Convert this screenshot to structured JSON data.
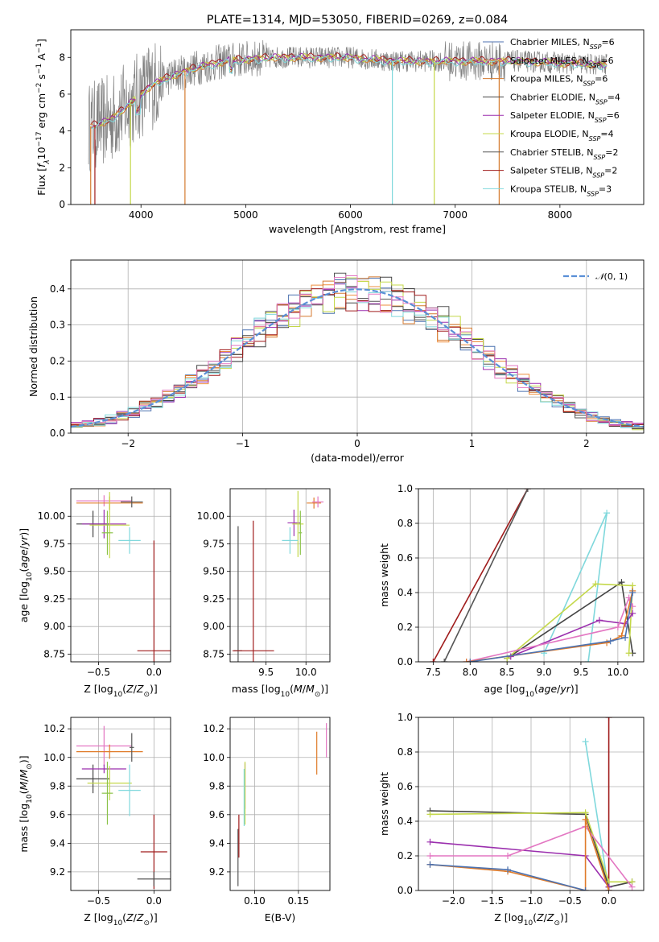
{
  "title": "PLATE=1314, MJD=53050, FIBERID=0269, z=0.084",
  "colors": {
    "chabrier_miles": "#4c72b0",
    "salpeter_miles": "#ee8e3d",
    "kroupa_miles": "#d57a2f",
    "chabrier_elodie": "#444444",
    "salpeter_elodie": "#9b2fae",
    "kroupa_elodie": "#c4d84a",
    "chabrier_stelib": "#555555",
    "salpeter_stelib": "#a01c1c",
    "kroupa_stelib": "#7fd8dc",
    "pink": "#e377c2",
    "orange": "#e07b29",
    "olive": "#8bc34a",
    "gray": "#808080",
    "normal_curve": "#5a8fd6"
  },
  "chart_data": [
    {
      "id": "spectrum",
      "type": "line",
      "title": "PLATE=1314, MJD=53050, FIBERID=0269, z=0.084",
      "xlabel": "wavelength [Angstrom, rest frame]",
      "ylabel": "Flux [f_λ10^-17 erg cm^-2 s^-1 A^-1]",
      "xlim": [
        3330,
        8800
      ],
      "ylim": [
        0,
        9.5
      ],
      "xticks": [
        4000,
        5000,
        6000,
        7000,
        8000
      ],
      "yticks": [
        0,
        2,
        4,
        6,
        8
      ],
      "grid": false,
      "legend_position": "top-right",
      "continuum": {
        "x": [
          3500,
          3700,
          3900,
          4100,
          4300,
          4500,
          4800,
          5000,
          5300,
          5600,
          6000,
          6400,
          6800,
          7200,
          7600,
          8000,
          8400
        ],
        "y": [
          4.2,
          4.6,
          5.5,
          6.5,
          7.0,
          7.4,
          7.8,
          7.9,
          8.0,
          8.0,
          8.0,
          7.8,
          7.8,
          7.8,
          7.8,
          7.7,
          7.6
        ]
      },
      "series": [
        {
          "name": "Chabrier MILES, N_SSP=6",
          "n_ssp": 6,
          "color": "#4c72b0"
        },
        {
          "name": "Salpeter MILES, N_SSP=6",
          "n_ssp": 6,
          "color": "#ee8e3d"
        },
        {
          "name": "Kroupa MILES, N_SSP=6",
          "n_ssp": 6,
          "color": "#d57a2f"
        },
        {
          "name": "Chabrier ELODIE, N_SSP=4",
          "n_ssp": 4,
          "color": "#444444"
        },
        {
          "name": "Salpeter ELODIE, N_SSP=6",
          "n_ssp": 6,
          "color": "#9b2fae"
        },
        {
          "name": "Kroupa ELODIE, N_SSP=4",
          "n_ssp": 4,
          "color": "#c4d84a"
        },
        {
          "name": "Chabrier STELIB, N_SSP=2",
          "n_ssp": 2,
          "color": "#555555"
        },
        {
          "name": "Salpeter STELIB, N_SSP=2",
          "n_ssp": 2,
          "color": "#a01c1c"
        },
        {
          "name": "Kroupa STELIB, N_SSP=3",
          "n_ssp": 3,
          "color": "#7fd8dc"
        }
      ],
      "legend_labels": [
        {
          "pre": "Chabrier MILES, N",
          "sub": "SSP",
          "post": "=6"
        },
        {
          "pre": "Salpeter MILES, N",
          "sub": "SSP",
          "post": "=6"
        },
        {
          "pre": "Kroupa MILES, N",
          "sub": "SSP",
          "post": "=6"
        },
        {
          "pre": "Chabrier ELODIE, N",
          "sub": "SSP",
          "post": "=4"
        },
        {
          "pre": "Salpeter ELODIE, N",
          "sub": "SSP",
          "post": "=6"
        },
        {
          "pre": "Kroupa ELODIE, N",
          "sub": "SSP",
          "post": "=4"
        },
        {
          "pre": "Chabrier STELIB, N",
          "sub": "SSP",
          "post": "=2"
        },
        {
          "pre": "Salpeter STELIB, N",
          "sub": "SSP",
          "post": "=2"
        },
        {
          "pre": "Kroupa STELIB, N",
          "sub": "SSP",
          "post": "=3"
        }
      ],
      "dropouts": [
        {
          "x": 3520,
          "color": "#d57a2f"
        },
        {
          "x": 3560,
          "color": "#a01c1c"
        },
        {
          "x": 3900,
          "color": "#c4d84a"
        },
        {
          "x": 4420,
          "color": "#d57a2f"
        },
        {
          "x": 6400,
          "color": "#7fd8dc"
        },
        {
          "x": 6800,
          "color": "#c4d84a"
        },
        {
          "x": 7420,
          "color": "#d57a2f"
        }
      ]
    },
    {
      "id": "residuals",
      "type": "histogram",
      "xlabel": "(data-model)/error",
      "ylabel": "Normed distribution",
      "xlim": [
        -2.5,
        2.5
      ],
      "ylim": [
        0,
        0.48
      ],
      "xticks": [
        -2,
        -1,
        0,
        1,
        2
      ],
      "yticks": [
        0.0,
        0.1,
        0.2,
        0.3,
        0.4
      ],
      "grid": true,
      "legend_position": "top-right",
      "reference_curve": {
        "name": "N(0,1)",
        "mean": 0,
        "sigma": 1,
        "color": "#5a8fd6"
      },
      "bin_width": 0.1,
      "series_colors": [
        "#4c72b0",
        "#ee8e3d",
        "#d57a2f",
        "#444444",
        "#9b2fae",
        "#c4d84a",
        "#555555",
        "#a01c1c",
        "#7fd8dc",
        "#e377c2"
      ]
    },
    {
      "id": "age_vs_Z",
      "type": "scatter",
      "xlabel": "Z [log10(Z/Z⊙)]",
      "ylabel": "age [log10(age/yr)]",
      "xlim": [
        -0.75,
        0.15
      ],
      "ylim": [
        8.68,
        10.25
      ],
      "xticks": [
        -0.5,
        0.0
      ],
      "yticks": [
        8.75,
        9.0,
        9.25,
        9.5,
        9.75,
        10.0
      ],
      "grid": true,
      "points": [
        {
          "x": -0.45,
          "y": 10.14,
          "xerr": 0.25,
          "yerr": 0.05,
          "color": "#e377c2"
        },
        {
          "x": -0.4,
          "y": 10.12,
          "xerr": 0.3,
          "yerr": 0.06,
          "color": "#e07b29"
        },
        {
          "x": -0.2,
          "y": 10.13,
          "xerr": 0.1,
          "yerr": 0.05,
          "color": "#555555"
        },
        {
          "x": -0.55,
          "y": 9.93,
          "xerr": 0.15,
          "yerr": 0.12,
          "color": "#444444"
        },
        {
          "x": -0.45,
          "y": 9.93,
          "xerr": 0.2,
          "yerr": 0.13,
          "color": "#9b2fae"
        },
        {
          "x": -0.4,
          "y": 9.92,
          "xerr": 0.18,
          "yerr": 0.3,
          "color": "#c4d84a"
        },
        {
          "x": -0.42,
          "y": 9.85,
          "xerr": 0.05,
          "yerr": 0.2,
          "color": "#8bc34a"
        },
        {
          "x": -0.22,
          "y": 9.78,
          "xerr": 0.1,
          "yerr": 0.12,
          "color": "#7fd8dc"
        },
        {
          "x": 0.0,
          "y": 8.78,
          "xerr": 0.15,
          "yerr": 1.0,
          "color": "#a01c1c"
        }
      ]
    },
    {
      "id": "age_vs_mass",
      "type": "scatter",
      "xlabel": "mass [log10(M/M⊙)]",
      "ylabel": "",
      "xlim": [
        9.05,
        10.3
      ],
      "ylim": [
        8.68,
        10.25
      ],
      "xticks": [
        9.5,
        10.0
      ],
      "yticks": [
        8.75,
        9.0,
        9.25,
        9.5,
        9.75,
        10.0
      ],
      "grid": true,
      "points": [
        {
          "x": 9.15,
          "y": 8.78,
          "xerr": 0.05,
          "yerr": 1.13,
          "color": "#555555"
        },
        {
          "x": 9.34,
          "y": 8.78,
          "xerr": 0.26,
          "yerr": 1.18,
          "color": "#a01c1c"
        },
        {
          "x": 9.85,
          "y": 9.94,
          "xerr": 0.08,
          "yerr": 0.12,
          "color": "#9b2fae"
        },
        {
          "x": 9.9,
          "y": 9.93,
          "xerr": 0.07,
          "yerr": 0.3,
          "color": "#c4d84a"
        },
        {
          "x": 9.93,
          "y": 9.85,
          "xerr": 0.02,
          "yerr": 0.2,
          "color": "#8bc34a"
        },
        {
          "x": 9.8,
          "y": 9.78,
          "xerr": 0.1,
          "yerr": 0.12,
          "color": "#7fd8dc"
        },
        {
          "x": 10.1,
          "y": 10.12,
          "xerr": 0.09,
          "yerr": 0.05,
          "color": "#e07b29"
        },
        {
          "x": 10.15,
          "y": 10.13,
          "xerr": 0.07,
          "yerr": 0.05,
          "color": "#e377c2"
        }
      ]
    },
    {
      "id": "weight_vs_age",
      "type": "line",
      "xlabel": "age [log10(age/yr)]",
      "ylabel": "mass weight",
      "xlim": [
        7.3,
        10.35
      ],
      "ylim": [
        0,
        1.0
      ],
      "xticks": [
        7.5,
        8.0,
        8.5,
        9.0,
        9.5,
        10.0
      ],
      "yticks": [
        0.0,
        0.2,
        0.4,
        0.6,
        0.8,
        1.0
      ],
      "grid": true,
      "series": [
        {
          "color": "#a01c1c",
          "x": [
            7.5,
            8.78
          ],
          "y": [
            0.0,
            1.0
          ]
        },
        {
          "color": "#555555",
          "x": [
            7.65,
            8.78
          ],
          "y": [
            0.0,
            1.0
          ]
        },
        {
          "color": "#7fd8dc",
          "x": [
            9.0,
            9.85,
            9.6
          ],
          "y": [
            0.05,
            0.86,
            0.0
          ]
        },
        {
          "color": "#444444",
          "x": [
            8.5,
            10.05,
            10.2
          ],
          "y": [
            0.02,
            0.46,
            0.05
          ]
        },
        {
          "color": "#c4d84a",
          "x": [
            8.5,
            9.7,
            10.2,
            10.15
          ],
          "y": [
            0.02,
            0.45,
            0.44,
            0.05
          ]
        },
        {
          "color": "#9b2fae",
          "x": [
            8.55,
            9.75,
            10.1,
            10.2
          ],
          "y": [
            0.03,
            0.24,
            0.22,
            0.28
          ]
        },
        {
          "color": "#e377c2",
          "x": [
            7.95,
            10.0,
            10.15,
            10.2
          ],
          "y": [
            0.0,
            0.2,
            0.37,
            0.32
          ]
        },
        {
          "color": "#e07b29",
          "x": [
            7.95,
            9.85,
            10.05,
            10.2
          ],
          "y": [
            0.0,
            0.11,
            0.15,
            0.41
          ]
        },
        {
          "color": "#4c72b0",
          "x": [
            8.0,
            9.9,
            10.1,
            10.2
          ],
          "y": [
            0.0,
            0.12,
            0.14,
            0.4
          ]
        }
      ]
    },
    {
      "id": "mass_vs_Z",
      "type": "scatter",
      "xlabel": "Z [log10(Z/Z⊙)]",
      "ylabel": "mass [log10(M/M⊙)]",
      "xlim": [
        -0.75,
        0.15
      ],
      "ylim": [
        9.07,
        10.28
      ],
      "xticks": [
        -0.5,
        0.0
      ],
      "yticks": [
        9.2,
        9.4,
        9.6,
        9.8,
        10.0,
        10.2
      ],
      "grid": true,
      "points": [
        {
          "x": -0.45,
          "y": 10.08,
          "xerr": 0.25,
          "yerr": 0.14,
          "color": "#e377c2"
        },
        {
          "x": -0.4,
          "y": 10.04,
          "xerr": 0.3,
          "yerr": 0.05,
          "color": "#e07b29"
        },
        {
          "x": -0.2,
          "y": 10.07,
          "xerr": 0.02,
          "yerr": 0.1,
          "color": "#555555"
        },
        {
          "x": -0.55,
          "y": 9.85,
          "xerr": 0.15,
          "yerr": 0.1,
          "color": "#444444"
        },
        {
          "x": -0.45,
          "y": 9.92,
          "xerr": 0.2,
          "yerr": 0.03,
          "color": "#9b2fae"
        },
        {
          "x": -0.4,
          "y": 9.82,
          "xerr": 0.2,
          "yerr": 0.12,
          "color": "#c4d84a"
        },
        {
          "x": -0.42,
          "y": 9.75,
          "xerr": 0.05,
          "yerr": 0.22,
          "color": "#8bc34a"
        },
        {
          "x": -0.22,
          "y": 9.77,
          "xerr": 0.1,
          "yerr": 0.18,
          "color": "#7fd8dc"
        },
        {
          "x": 0.0,
          "y": 9.34,
          "xerr": 0.12,
          "yerr": 0.26,
          "color": "#a01c1c"
        },
        {
          "x": 0.0,
          "y": 9.15,
          "xerr": 0.15,
          "yerr": 0.05,
          "color": "#555555"
        }
      ]
    },
    {
      "id": "mass_vs_ebv",
      "type": "scatter",
      "xlabel": "E(B-V)",
      "ylabel": "",
      "xlim": [
        0.072,
        0.186
      ],
      "ylim": [
        9.07,
        10.28
      ],
      "xticks": [
        0.1,
        0.15
      ],
      "yticks": [
        9.2,
        9.4,
        9.6,
        9.8,
        10.0,
        10.2
      ],
      "grid": true,
      "points": [
        {
          "x": 0.081,
          "y": 9.3,
          "yerr": 0.2,
          "color": "#555555"
        },
        {
          "x": 0.082,
          "y": 9.45,
          "yerr": 0.15,
          "color": "#a01c1c"
        },
        {
          "x": 0.089,
          "y": 9.8,
          "yerr": 0.16,
          "color": "#9b2fae"
        },
        {
          "x": 0.089,
          "y": 9.75,
          "yerr": 0.22,
          "color": "#c4d84a"
        },
        {
          "x": 0.088,
          "y": 9.72,
          "yerr": 0.2,
          "color": "#7fd8dc"
        },
        {
          "x": 0.171,
          "y": 10.03,
          "yerr": 0.15,
          "color": "#e07b29"
        },
        {
          "x": 0.182,
          "y": 10.12,
          "yerr": 0.12,
          "color": "#e377c2"
        }
      ]
    },
    {
      "id": "weight_vs_Z",
      "type": "line",
      "xlabel": "Z [log10(Z/Z⊙)]",
      "ylabel": "mass weight",
      "xlim": [
        -2.45,
        0.45
      ],
      "ylim": [
        0,
        1.0
      ],
      "xticks": [
        -2.0,
        -1.5,
        -1.0,
        -0.5,
        0.0
      ],
      "yticks": [
        0.0,
        0.2,
        0.4,
        0.6,
        0.8,
        1.0
      ],
      "grid": true,
      "series": [
        {
          "color": "#a01c1c",
          "x": [
            0.0,
            0.0
          ],
          "y": [
            0.0,
            1.0
          ]
        },
        {
          "color": "#7fd8dc",
          "x": [
            -0.3,
            0.0
          ],
          "y": [
            0.86,
            0.0
          ]
        },
        {
          "color": "#444444",
          "x": [
            -2.3,
            -0.3,
            0.0,
            0.3
          ],
          "y": [
            0.46,
            0.44,
            0.02,
            0.05
          ]
        },
        {
          "color": "#c4d84a",
          "x": [
            -2.3,
            -0.3,
            0.0,
            0.3
          ],
          "y": [
            0.44,
            0.45,
            0.05,
            0.05
          ]
        },
        {
          "color": "#9b2fae",
          "x": [
            -2.3,
            -0.3,
            0.0,
            0.0
          ],
          "y": [
            0.28,
            0.2,
            0.02,
            0.0
          ]
        },
        {
          "color": "#e377c2",
          "x": [
            -2.3,
            -1.3,
            -0.3,
            0.3
          ],
          "y": [
            0.2,
            0.2,
            0.37,
            0.02
          ]
        },
        {
          "color": "#e07b29",
          "x": [
            -2.3,
            -1.3,
            -0.3,
            -0.3,
            0.0
          ],
          "y": [
            0.15,
            0.11,
            0.0,
            0.41,
            0.0
          ]
        },
        {
          "color": "#4c72b0",
          "x": [
            -2.3,
            -1.3,
            -0.3
          ],
          "y": [
            0.15,
            0.12,
            0.0
          ]
        }
      ]
    }
  ]
}
